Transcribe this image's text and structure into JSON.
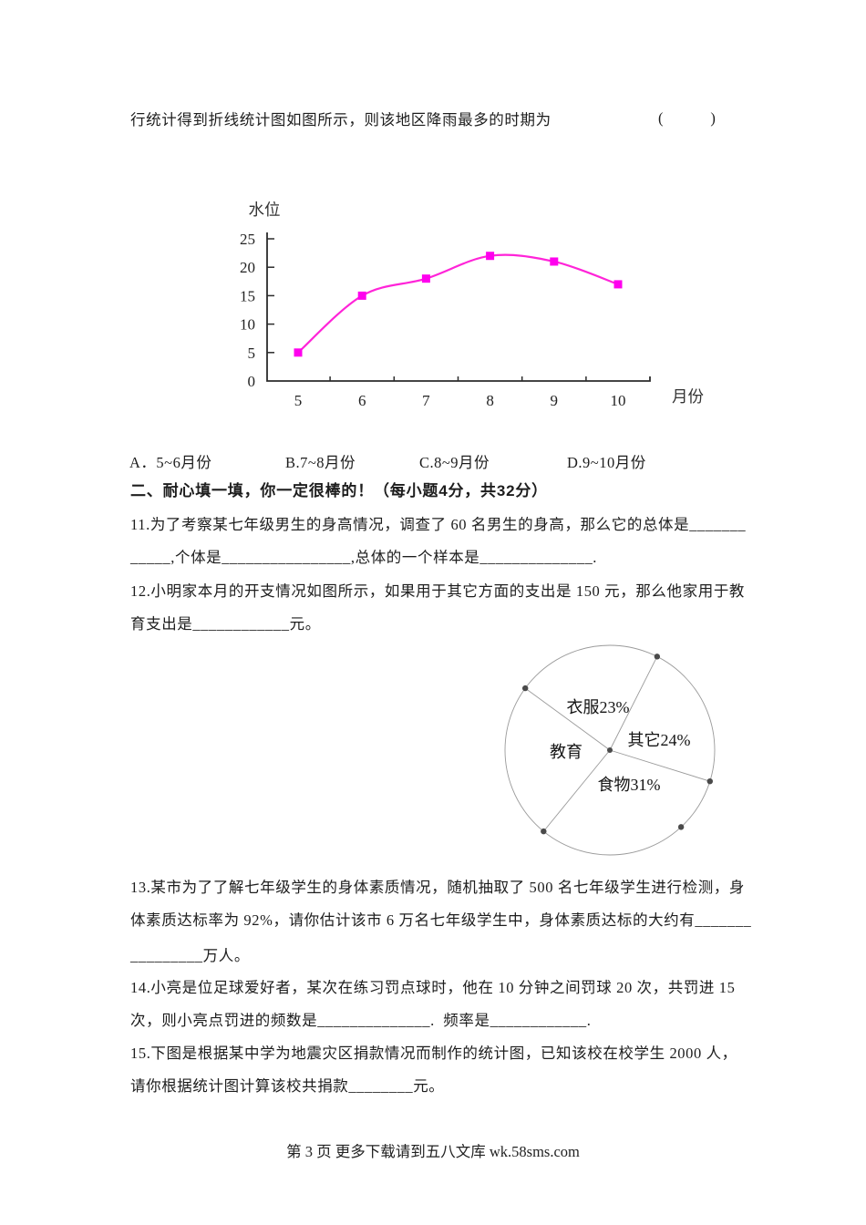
{
  "intro": {
    "line": "行统计得到折线统计图如图所示，则该地区降雨最多的时期为",
    "brackets": "(　　　)"
  },
  "options": [
    "A．5~6月份",
    "B.7~8月份",
    "C.8~9月份",
    "D.9~10月份"
  ],
  "section_header": "二、耐心填一填，你一定很棒的！（每小题4分，共32分）",
  "questions": {
    "q11": {
      "line1": "11.为了考察某七年级男生的身高情况，调查了 60 名男生的身高，那么它的总体是_______",
      "line2": "_____,个体是________________,总体的一个样本是______________."
    },
    "q12": {
      "line1": "12.小明家本月的开支情况如图所示，如果用于其它方面的支出是 150 元，那么他家用于教",
      "line2": "育支出是____________元。"
    },
    "q13": {
      "line1": "13.某市为了了解七年级学生的身体素质情况，随机抽取了 500 名七年级学生进行检测，身",
      "line2": "体素质达标率为 92%，请你估计该市 6 万名七年级学生中，身体素质达标的大约有_______",
      "line3": "_________万人。"
    },
    "q14": {
      "line1": "14.小亮是位足球爱好者，某次在练习罚点球时，他在 10 分钟之间罚球 20 次，共罚进 15",
      "line2": "次，则小亮点罚进的频数是______________.  频率是____________."
    },
    "q15": {
      "line1": "15.下图是根据某中学为地震灾区捐款情况而制作的统计图，已知该校在校学生 2000 人，",
      "line2": "请你根据统计图计算该校共捐款________元。"
    }
  },
  "footer": "第 3 页 更多下载请到五八文库 wk.58sms.com",
  "chart_data": [
    {
      "type": "line",
      "title": "",
      "ylabel": "水位",
      "xlabel": "月份",
      "x": [
        5,
        6,
        7,
        8,
        9,
        10
      ],
      "values": [
        5,
        15,
        18,
        22,
        21,
        17
      ],
      "yticks": [
        0,
        5,
        10,
        15,
        20,
        25
      ],
      "ylim": [
        0,
        25
      ],
      "grid": false,
      "legend": "none",
      "line_color": "#ff24d8",
      "marker": "square",
      "marker_color": "#ff00ee"
    },
    {
      "type": "pie",
      "style": "outline-only-gray",
      "slices": [
        {
          "label": "衣服",
          "pct": 23,
          "display": "衣服23%",
          "pos": [
            116,
            87
          ]
        },
        {
          "label": "其它",
          "pct": 24,
          "display": "其它24%",
          "pos": [
            183,
            123
          ]
        },
        {
          "label": "食物",
          "pct": 31,
          "display": "食物31%",
          "pos": [
            150,
            172
          ]
        },
        {
          "label": "教育",
          "pct": 22,
          "display": "教育",
          "pos": [
            81,
            136
          ]
        }
      ],
      "boundary_angles_deg": [
        -143.8,
        -63.2,
        17.3,
        129.2
      ],
      "extra_dot_angle_deg": 47.2,
      "outline_color": "#9a9a9a",
      "dot_color": "#4a4a4a"
    }
  ]
}
